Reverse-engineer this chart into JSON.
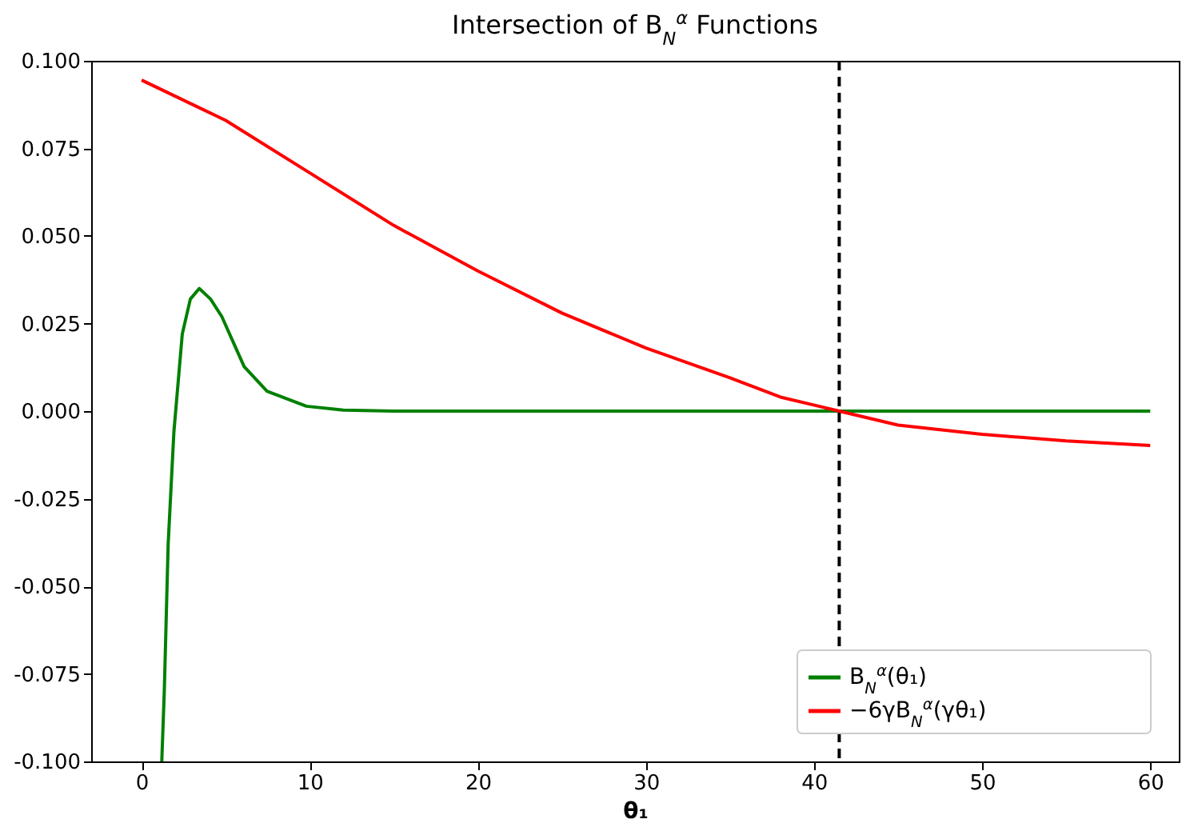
{
  "chart_data": {
    "type": "line",
    "title": "Intersection of B$_{N}$$^{α}$ Functions",
    "xlabel": "θ₁",
    "xlim": [
      -3,
      61.7
    ],
    "xticks": [
      0,
      10,
      20,
      30,
      40,
      50,
      60
    ],
    "ylim": [
      -0.1,
      0.1
    ],
    "yticks": [
      {
        "value": -0.1,
        "label": "-0.100"
      },
      {
        "value": -0.075,
        "label": "-0.075"
      },
      {
        "value": -0.05,
        "label": "-0.050"
      },
      {
        "value": -0.025,
        "label": "-0.025"
      },
      {
        "value": 0,
        "label": "0.000"
      },
      {
        "value": 0.025,
        "label": "0.025"
      },
      {
        "value": 0.05,
        "label": "0.050"
      },
      {
        "value": 0.075,
        "label": "0.075"
      },
      {
        "value": 0.1,
        "label": "0.100"
      }
    ],
    "series": [
      {
        "name": "B$_{N}$$^{α}$(θ₁)",
        "color": "#008000",
        "x": [
          1.2,
          1.35,
          1.58,
          1.92,
          2.42,
          2.9,
          3.43,
          4.1,
          4.77,
          6.1,
          7.46,
          9.8,
          12,
          15,
          60
        ],
        "values": [
          -0.1,
          -0.08,
          -0.038,
          -0.006,
          0.022,
          0.032,
          0.035,
          0.032,
          0.027,
          0.0127,
          0.0057,
          0.0014,
          0.0003,
          0,
          0
        ]
      },
      {
        "name": "−6γB$_{N}$$^{α}$(γθ₁)",
        "color": "#ff0000",
        "x": [
          0,
          5,
          10,
          15,
          20,
          25,
          30,
          35,
          38,
          41.5,
          45,
          50,
          55,
          60
        ],
        "values": [
          0.0945,
          0.083,
          0.068,
          0.053,
          0.04,
          0.028,
          0.018,
          0.0095,
          0.004,
          0,
          -0.004,
          -0.0066,
          -0.0085,
          -0.0098
        ]
      }
    ],
    "ref_lines": [
      {
        "axis": "x",
        "value": 41.5,
        "color": "#000000",
        "line_style": "dashed"
      }
    ],
    "legend": "bottom right",
    "grid": false,
    "line_style": "solid",
    "marker": "none"
  }
}
